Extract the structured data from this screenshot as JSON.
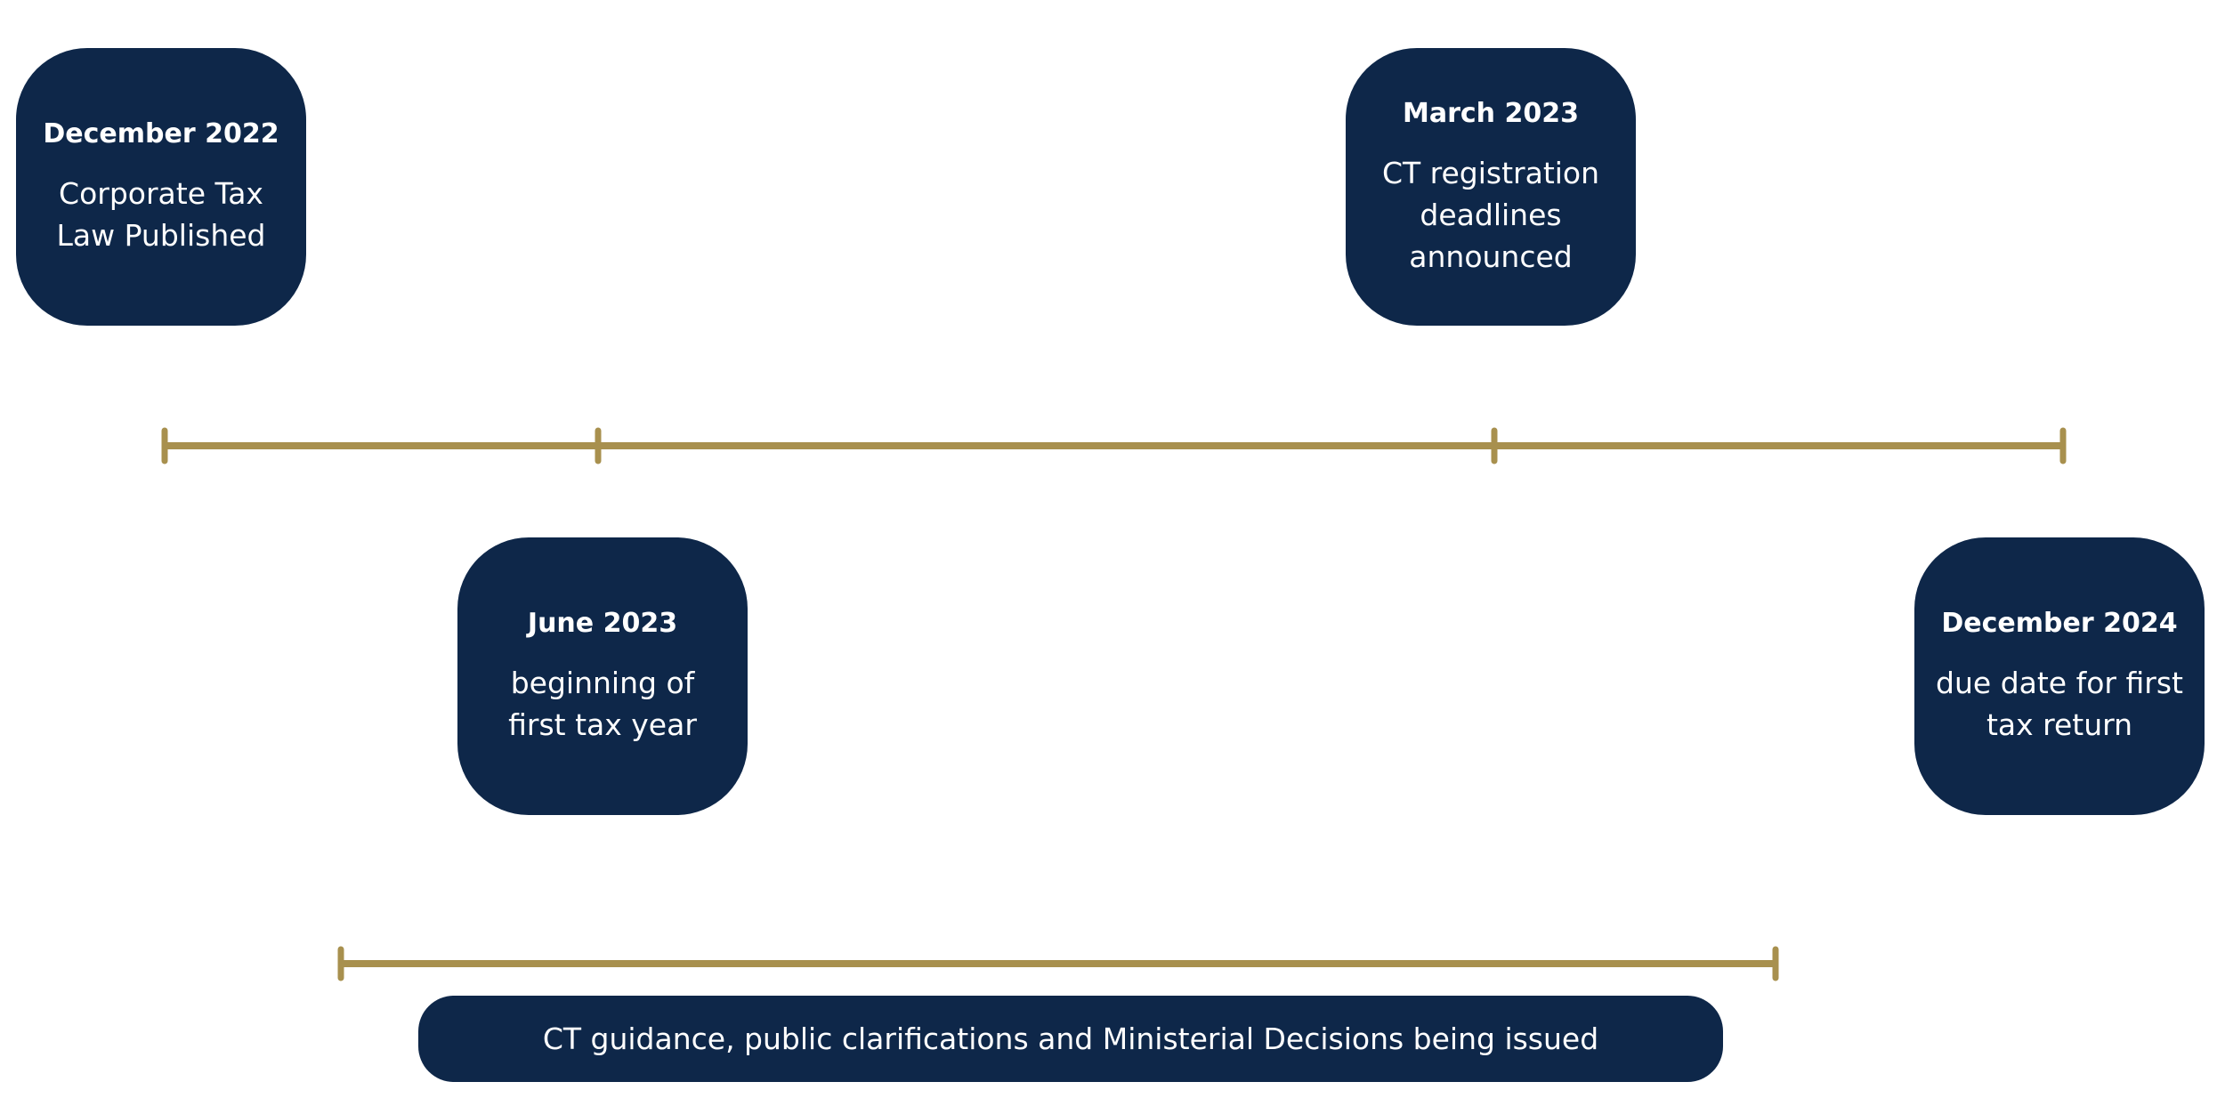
{
  "timeline": {
    "line_color": "#a8904e",
    "card_color": "#0e2749",
    "milestones": [
      {
        "date": "December 2022",
        "text": "Corporate Tax Law Published"
      },
      {
        "date": "March 2023",
        "text": "CT registration deadlines announced"
      },
      {
        "date": "June 2023",
        "text": "beginning of first tax year"
      },
      {
        "date": "December 2024",
        "text": "due date for first tax return"
      }
    ],
    "period": {
      "text": "CT guidance, public clarifications and Ministerial Decisions being issued"
    }
  }
}
